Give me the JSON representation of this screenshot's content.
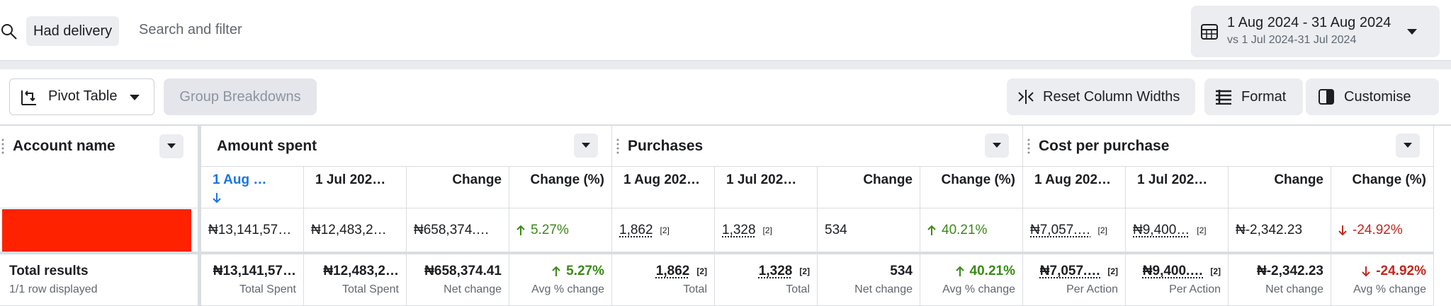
{
  "filter": {
    "chip": "Had delivery",
    "placeholder": "Search and filter"
  },
  "date_range": {
    "primary": "1 Aug 2024 - 31 Aug 2024",
    "comparison": "vs 1 Jul 2024-31 Jul 2024"
  },
  "toolbar": {
    "pivot": "Pivot Table",
    "group": "Group Breakdowns",
    "reset": "Reset Column Widths",
    "format": "Format",
    "customise": "Customise"
  },
  "table": {
    "account_header": "Account name",
    "groups": [
      "Amount spent",
      "Purchases",
      "Cost per purchase"
    ],
    "columns": [
      "1 Aug …",
      "1 Jul 202…",
      "Change",
      "Change (%)",
      "1 Aug 202…",
      "1 Jul 202…",
      "Change",
      "Change (%)",
      "1 Aug 202…",
      "1 Jul 202…",
      "Change",
      "Change (%)"
    ],
    "row": [
      {
        "text": "₦13,141,57…"
      },
      {
        "text": "₦12,483,2…"
      },
      {
        "text": "₦658,374.…"
      },
      {
        "text": "5.27%"
      },
      {
        "text": "1,862",
        "note": "[2]"
      },
      {
        "text": "1,328",
        "note": "[2]"
      },
      {
        "text": "534"
      },
      {
        "text": "40.21%"
      },
      {
        "text": "₦7,057.…",
        "note": "[2]"
      },
      {
        "text": "₦9,400…",
        "note": "[2]"
      },
      {
        "text": "₦-2,342.23"
      },
      {
        "text": "-24.92%"
      }
    ],
    "totals": {
      "label": "Total results",
      "sublabel": "1/1 row displayed",
      "values": [
        {
          "text": "₦13,141,57…"
        },
        {
          "text": "₦12,483,2…"
        },
        {
          "text": "₦658,374.41"
        },
        {
          "text": "5.27%"
        },
        {
          "text": "1,862",
          "note": "[2]"
        },
        {
          "text": "1,328",
          "note": "[2]"
        },
        {
          "text": "534"
        },
        {
          "text": "40.21%"
        },
        {
          "text": "₦7,057.…",
          "note": "[2]"
        },
        {
          "text": "₦9,400.…",
          "note": "[2]"
        },
        {
          "text": "₦-2,342.23"
        },
        {
          "text": "-24.92%"
        }
      ],
      "captions": [
        "Total Spent",
        "Total Spent",
        "Net change",
        "Avg % change",
        "Total",
        "Total",
        "Net change",
        "Avg % change",
        "Per Action",
        "Per Action",
        "Net change",
        "Avg % change"
      ]
    }
  }
}
